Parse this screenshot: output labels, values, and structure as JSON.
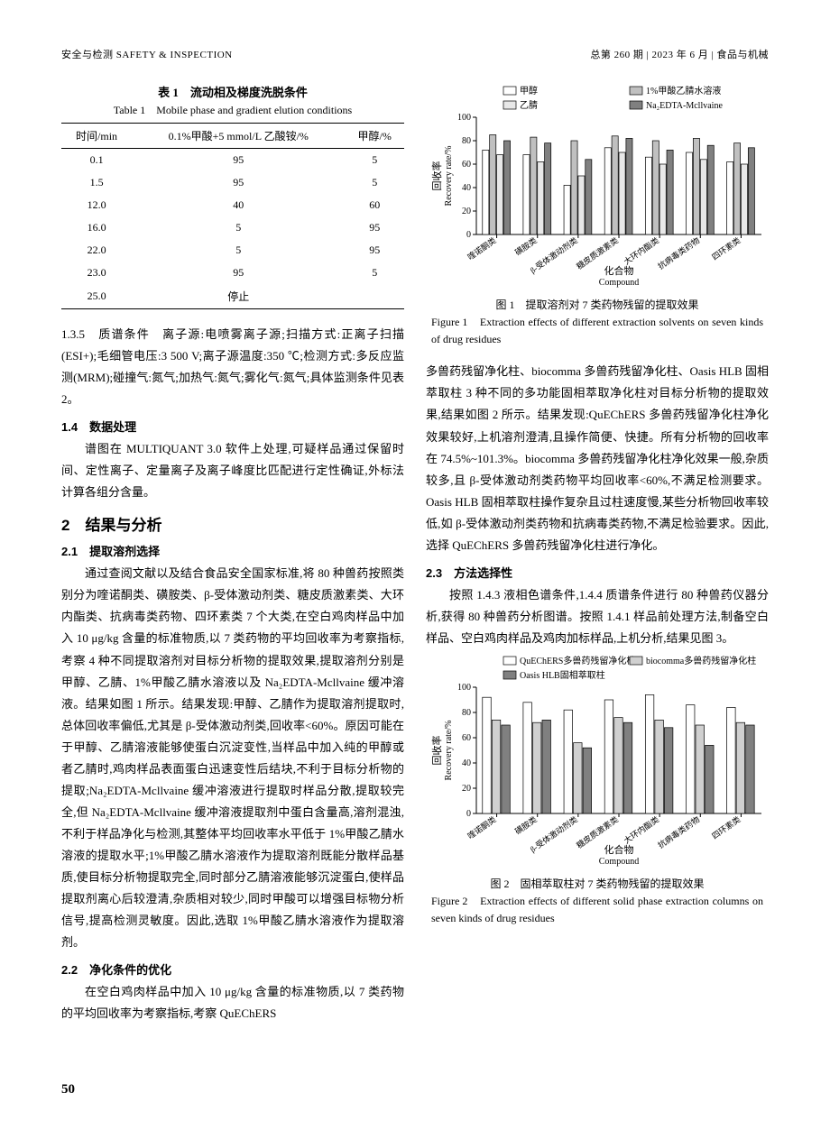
{
  "header": {
    "left": "安全与检测 SAFETY & INSPECTION",
    "right": "总第 260 期 | 2023 年 6 月 | 食品与机械"
  },
  "table1": {
    "caption_cn": "表 1　流动相及梯度洗脱条件",
    "caption_en": "Table 1　Mobile phase and gradient elution conditions",
    "headers": [
      "时间/min",
      "0.1%甲酸+5 mmol/L 乙酸铵/%",
      "甲醇/%"
    ],
    "rows": [
      [
        "0.1",
        "95",
        "5"
      ],
      [
        "1.5",
        "95",
        "5"
      ],
      [
        "12.0",
        "40",
        "60"
      ],
      [
        "16.0",
        "5",
        "95"
      ],
      [
        "22.0",
        "5",
        "95"
      ],
      [
        "23.0",
        "95",
        "5"
      ],
      [
        "25.0",
        "停止",
        ""
      ]
    ]
  },
  "left_col": {
    "p135": "1.3.5　质谱条件　离子源:电喷雾离子源;扫描方式:正离子扫描(ESI+);毛细管电压:3 500 V;离子源温度:350 ℃;检测方式:多反应监测(MRM);碰撞气:氮气;加热气:氮气;雾化气:氮气;具体监测条件见表 2。",
    "h14": "1.4　数据处理",
    "p14": "谱图在 MULTIQUANT 3.0 软件上处理,可疑样品通过保留时间、定性离子、定量离子及离子峰度比匹配进行定性确证,外标法计算各组分含量。",
    "h2": "2　结果与分析",
    "h21": "2.1　提取溶剂选择",
    "p21": "通过查阅文献以及结合食品安全国家标准,将 80 种兽药按照类别分为喹诺酮类、磺胺类、β-受体激动剂类、糖皮质激素类、大环内酯类、抗病毒类药物、四环素类 7 个大类,在空白鸡肉样品中加入 10 μg/kg 含量的标准物质,以 7 类药物的平均回收率为考察指标,考察 4 种不同提取溶剂对目标分析物的提取效果,提取溶剂分别是甲醇、乙腈、1%甲酸乙腈水溶液以及 Na₂EDTA-Mcllvaine 缓冲溶液。结果如图 1 所示。结果发现:甲醇、乙腈作为提取溶剂提取时,总体回收率偏低,尤其是 β-受体激动剂类,回收率<60%。原因可能在于甲醇、乙腈溶液能够使蛋白沉淀变性,当样品中加入纯的甲醇或者乙腈时,鸡肉样品表面蛋白迅速变性后结块,不利于目标分析物的提取;Na₂EDTA-Mcllvaine 缓冲溶液进行提取时样品分散,提取较完全,但 Na₂EDTA-Mcllvaine 缓冲溶液提取剂中蛋白含量高,溶剂混浊,不利于样品净化与检测,其整体平均回收率水平低于 1%甲酸乙腈水溶液的提取水平;1%甲酸乙腈水溶液作为提取溶剂既能分散样品基质,使目标分析物提取完全,同时部分乙腈溶液能够沉淀蛋白,使样品提取剂离心后较澄清,杂质相对较少,同时甲酸可以增强目标物分析信号,提高检测灵敏度。因此,选取 1%甲酸乙腈水溶液作为提取溶剂。",
    "h22": "2.2　净化条件的优化",
    "p22": "在空白鸡肉样品中加入 10 μg/kg 含量的标准物质,以 7 类药物的平均回收率为考察指标,考察 QuEChERS"
  },
  "right_col": {
    "p22cont": "多兽药残留净化柱、biocomma 多兽药残留净化柱、Oasis HLB 固相萃取柱 3 种不同的多功能固相萃取净化柱对目标分析物的提取效果,结果如图 2 所示。结果发现:QuEChERS 多兽药残留净化柱净化效果较好,上机溶剂澄清,且操作简便、快捷。所有分析物的回收率在 74.5%~101.3%。biocomma 多兽药残留净化柱净化效果一般,杂质较多,且 β-受体激动剂类药物平均回收率<60%,不满足检测要求。Oasis HLB 固相萃取柱操作复杂且过柱速度慢,某些分析物回收率较低,如 β-受体激动剂类药物和抗病毒类药物,不满足检验要求。因此,选择 QuEChERS 多兽药残留净化柱进行净化。",
    "h23": "2.3　方法选择性",
    "p23": "按照 1.4.3 液相色谱条件,1.4.4 质谱条件进行 80 种兽药仪器分析,获得 80 种兽药分析图谱。按照 1.4.1 样品前处理方法,制备空白样品、空白鸡肉样品及鸡肉加标样品,上机分析,结果见图 3。"
  },
  "figure1": {
    "caption_cn": "图 1　提取溶剂对 7 类药物残留的提取效果",
    "caption_en_label": "Figure 1",
    "caption_en_body": "Extraction effects of different extraction solvents on seven kinds of drug residues",
    "legend": [
      "甲醇",
      "1%甲酸乙腈水溶液",
      "乙腈",
      "Na₂EDTA-Mcllvaine"
    ],
    "legend_fills": [
      "#ffffff",
      "#c0c0c0",
      "#e8e8e8",
      "#808080"
    ],
    "categories": [
      "喹诺酮类",
      "磺胺类",
      "β-受体激动剂类",
      "糖皮质激素类",
      "大环内酯类",
      "抗病毒类药物",
      "四环素类"
    ],
    "data": [
      [
        72,
        85,
        68,
        80
      ],
      [
        68,
        83,
        62,
        78
      ],
      [
        42,
        80,
        50,
        64
      ],
      [
        74,
        84,
        70,
        82
      ],
      [
        66,
        80,
        60,
        72
      ],
      [
        70,
        82,
        64,
        76
      ],
      [
        62,
        78,
        60,
        74
      ]
    ],
    "ylabel_cn": "回收率",
    "ylabel_en": "Recovery rate/%",
    "xlabel_cn": "化合物",
    "xlabel_en": "Compound",
    "ylim": [
      0,
      100
    ],
    "ytick_step": 20,
    "stroke": "#000000",
    "background": "#ffffff",
    "title_fontsize": 10,
    "label_fontsize": 10
  },
  "figure2": {
    "caption_cn": "图 2　固相萃取柱对 7 类药物残留的提取效果",
    "caption_en_label": "Figure 2",
    "caption_en_body": "Extraction effects of different solid phase extraction columns on seven kinds of drug residues",
    "legend": [
      "QuEChERS多兽药残留净化柱",
      "biocomma多兽药残留净化柱",
      "Oasis HLB固相萃取柱"
    ],
    "legend_fills": [
      "#ffffff",
      "#d0d0d0",
      "#808080"
    ],
    "categories": [
      "喹诺酮类",
      "磺胺类",
      "β-受体激动剂类",
      "糖皮质激素类",
      "大环内酯类",
      "抗病毒类药物",
      "四环素类"
    ],
    "data": [
      [
        92,
        74,
        70
      ],
      [
        88,
        72,
        74
      ],
      [
        82,
        56,
        52
      ],
      [
        90,
        76,
        72
      ],
      [
        94,
        74,
        68
      ],
      [
        86,
        70,
        54
      ],
      [
        84,
        72,
        70
      ]
    ],
    "ylabel_cn": "回收率",
    "ylabel_en": "Recovery rate/%",
    "xlabel_cn": "化合物",
    "xlabel_en": "Compound",
    "ylim": [
      0,
      100
    ],
    "ytick_step": 20,
    "stroke": "#000000",
    "background": "#ffffff",
    "title_fontsize": 10,
    "label_fontsize": 10
  },
  "page_num": "50"
}
